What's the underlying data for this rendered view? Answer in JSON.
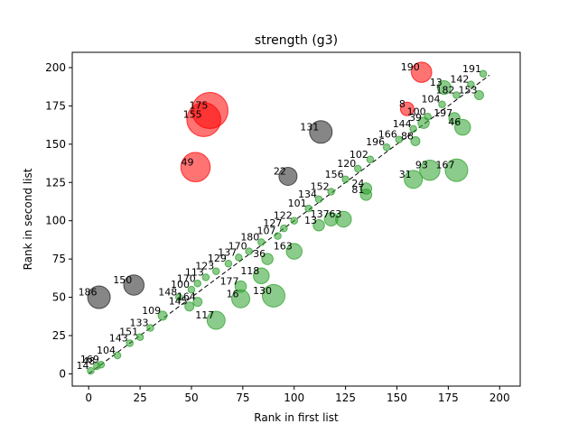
{
  "chart_data": {
    "type": "scatter",
    "title": "strength (g3)",
    "xlabel": "Rank in first list",
    "ylabel": "Rank in second list",
    "xlim": [
      -8,
      210
    ],
    "ylim": [
      -8,
      210
    ],
    "xticks": [
      0,
      25,
      50,
      75,
      100,
      125,
      150,
      175,
      200
    ],
    "yticks": [
      0,
      25,
      50,
      75,
      100,
      125,
      150,
      175,
      200
    ],
    "grid": false,
    "legend": "none",
    "diagonal_line": {
      "from": [
        0,
        0
      ],
      "to": [
        195,
        195
      ],
      "style": "dashed",
      "color": "#000000"
    },
    "colors": {
      "green": "#2ca02c",
      "red": "#ff0000",
      "gray": "#222222"
    },
    "points": [
      {
        "x": 59,
        "y": 172,
        "size": 16,
        "color": "red",
        "label": "175"
      },
      {
        "x": 56,
        "y": 166,
        "size": 15,
        "color": "red",
        "label": "155"
      },
      {
        "x": 52,
        "y": 135,
        "size": 13,
        "color": "red",
        "label": "49"
      },
      {
        "x": 162,
        "y": 197,
        "size": 9,
        "color": "red",
        "label": "190"
      },
      {
        "x": 155,
        "y": 173,
        "size": 6,
        "color": "red",
        "label": "8"
      },
      {
        "x": 113,
        "y": 158,
        "size": 10,
        "color": "gray",
        "label": "131"
      },
      {
        "x": 97,
        "y": 129,
        "size": 8,
        "color": "gray",
        "label": "22"
      },
      {
        "x": 5,
        "y": 50,
        "size": 10,
        "color": "gray",
        "label": "186"
      },
      {
        "x": 22,
        "y": 58,
        "size": 9,
        "color": "gray",
        "label": "150"
      },
      {
        "x": 179,
        "y": 133,
        "size": 10,
        "color": "green",
        "label": "167"
      },
      {
        "x": 166,
        "y": 133,
        "size": 9,
        "color": "green",
        "label": "93"
      },
      {
        "x": 158,
        "y": 127,
        "size": 8,
        "color": "green",
        "label": "31"
      },
      {
        "x": 90,
        "y": 51,
        "size": 10,
        "color": "green",
        "label": "130"
      },
      {
        "x": 74,
        "y": 49,
        "size": 8,
        "color": "green",
        "label": "16"
      },
      {
        "x": 62,
        "y": 35,
        "size": 8,
        "color": "green",
        "label": "117"
      },
      {
        "x": 84,
        "y": 64,
        "size": 7,
        "color": "green",
        "label": "118"
      },
      {
        "x": 100,
        "y": 80,
        "size": 7,
        "color": "green",
        "label": "163"
      },
      {
        "x": 124,
        "y": 101,
        "size": 7,
        "color": "green",
        "label": "63"
      },
      {
        "x": 118,
        "y": 101,
        "size": 6,
        "color": "green",
        "label": "137"
      },
      {
        "x": 112,
        "y": 97,
        "size": 5,
        "color": "green",
        "label": "13"
      },
      {
        "x": 182,
        "y": 161,
        "size": 7,
        "color": "green",
        "label": "46"
      },
      {
        "x": 173,
        "y": 187,
        "size": 6,
        "color": "green",
        "label": "13"
      },
      {
        "x": 87,
        "y": 75,
        "size": 5,
        "color": "green",
        "label": "36"
      },
      {
        "x": 74,
        "y": 57,
        "size": 5,
        "color": "green",
        "label": "177"
      },
      {
        "x": 135,
        "y": 117,
        "size": 5,
        "color": "green",
        "label": "81"
      },
      {
        "x": 135,
        "y": 121,
        "size": 5,
        "color": "green",
        "label": "24"
      },
      {
        "x": 163,
        "y": 164,
        "size": 5,
        "color": "green",
        "label": "39"
      },
      {
        "x": 178,
        "y": 167,
        "size": 5,
        "color": "green",
        "label": "197"
      },
      {
        "x": 190,
        "y": 182,
        "size": 4,
        "color": "green",
        "label": "153"
      },
      {
        "x": 159,
        "y": 152,
        "size": 4,
        "color": "green",
        "label": "88"
      },
      {
        "x": 36,
        "y": 38,
        "size": 4,
        "color": "green",
        "label": "109"
      },
      {
        "x": 49,
        "y": 44,
        "size": 4,
        "color": "green",
        "label": "145"
      },
      {
        "x": 53,
        "y": 47,
        "size": 4,
        "color": "green",
        "label": "164"
      },
      {
        "x": 44,
        "y": 50,
        "size": 3,
        "color": "green",
        "label": "148"
      },
      {
        "x": 50,
        "y": 55,
        "size": 3,
        "color": "green",
        "label": "100"
      },
      {
        "x": 53,
        "y": 59,
        "size": 3,
        "color": "green",
        "label": "170"
      },
      {
        "x": 57,
        "y": 63,
        "size": 3,
        "color": "green",
        "label": "113"
      },
      {
        "x": 62,
        "y": 67,
        "size": 3,
        "color": "green",
        "label": "123"
      },
      {
        "x": 68,
        "y": 72,
        "size": 3,
        "color": "green",
        "label": "129"
      },
      {
        "x": 73,
        "y": 76,
        "size": 3,
        "color": "green",
        "label": "137"
      },
      {
        "x": 78,
        "y": 80,
        "size": 3,
        "color": "green",
        "label": "170"
      },
      {
        "x": 84,
        "y": 86,
        "size": 3,
        "color": "green",
        "label": "180"
      },
      {
        "x": 92,
        "y": 90,
        "size": 3,
        "color": "green",
        "label": "107"
      },
      {
        "x": 95,
        "y": 95,
        "size": 3,
        "color": "green",
        "label": "127"
      },
      {
        "x": 100,
        "y": 100,
        "size": 3,
        "color": "green",
        "label": "122"
      },
      {
        "x": 107,
        "y": 108,
        "size": 3,
        "color": "green",
        "label": "101"
      },
      {
        "x": 112,
        "y": 114,
        "size": 3,
        "color": "green",
        "label": "134"
      },
      {
        "x": 118,
        "y": 119,
        "size": 3,
        "color": "green",
        "label": "152"
      },
      {
        "x": 125,
        "y": 127,
        "size": 3,
        "color": "green",
        "label": "156"
      },
      {
        "x": 131,
        "y": 134,
        "size": 3,
        "color": "green",
        "label": "120"
      },
      {
        "x": 137,
        "y": 140,
        "size": 3,
        "color": "green",
        "label": "102"
      },
      {
        "x": 145,
        "y": 148,
        "size": 3,
        "color": "green",
        "label": "196"
      },
      {
        "x": 151,
        "y": 153,
        "size": 3,
        "color": "green",
        "label": "166"
      },
      {
        "x": 158,
        "y": 160,
        "size": 3,
        "color": "green",
        "label": "144"
      },
      {
        "x": 165,
        "y": 168,
        "size": 3,
        "color": "green",
        "label": "100"
      },
      {
        "x": 172,
        "y": 176,
        "size": 3,
        "color": "green",
        "label": "104"
      },
      {
        "x": 179,
        "y": 182,
        "size": 3,
        "color": "green",
        "label": "182"
      },
      {
        "x": 186,
        "y": 189,
        "size": 3,
        "color": "green",
        "label": "142"
      },
      {
        "x": 192,
        "y": 196,
        "size": 3,
        "color": "green",
        "label": "191"
      },
      {
        "x": 14,
        "y": 12,
        "size": 3,
        "color": "green",
        "label": "104"
      },
      {
        "x": 20,
        "y": 20,
        "size": 3,
        "color": "green",
        "label": "143"
      },
      {
        "x": 25,
        "y": 24,
        "size": 3,
        "color": "green",
        "label": "151"
      },
      {
        "x": 30,
        "y": 30,
        "size": 3,
        "color": "green",
        "label": "133"
      },
      {
        "x": 6,
        "y": 6,
        "size": 3,
        "color": "green",
        "label": "169"
      },
      {
        "x": 1,
        "y": 2,
        "size": 3,
        "color": "green",
        "label": "14"
      },
      {
        "x": 4,
        "y": 5,
        "size": 3,
        "color": "green",
        "label": "48"
      }
    ]
  }
}
